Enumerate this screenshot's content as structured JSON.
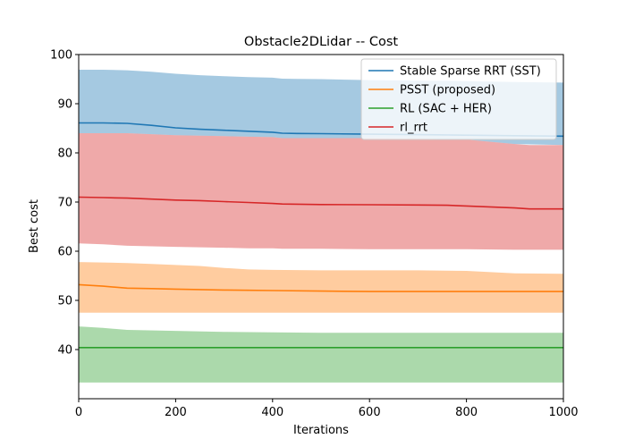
{
  "chart_data": {
    "type": "line",
    "title": "Obstacle2DLidar -- Cost",
    "xlabel": "Iterations",
    "ylabel": "Best cost",
    "xlim": [
      0,
      1000
    ],
    "ylim": [
      30,
      100
    ],
    "xticks": [
      0,
      200,
      400,
      600,
      800,
      1000
    ],
    "yticks": [
      40,
      50,
      60,
      70,
      80,
      90,
      100
    ],
    "grid": false,
    "legend_position": "top-right",
    "series": [
      {
        "name": "Stable Sparse RRT (SST)",
        "color": "#1f77b4",
        "x": [
          0,
          50,
          100,
          150,
          200,
          250,
          300,
          350,
          400,
          420,
          450,
          500,
          600,
          700,
          800,
          900,
          1000
        ],
        "mean": [
          86.1,
          86.1,
          86.0,
          85.6,
          85.1,
          84.8,
          84.6,
          84.4,
          84.2,
          84.0,
          83.95,
          83.9,
          83.8,
          83.7,
          83.6,
          83.5,
          83.4
        ],
        "upper": [
          96.9,
          96.9,
          96.8,
          96.5,
          96.1,
          95.8,
          95.6,
          95.4,
          95.3,
          95.1,
          95.05,
          95.0,
          94.8,
          94.7,
          94.6,
          94.4,
          94.3
        ],
        "lower": [
          84.0,
          84.0,
          84.0,
          83.8,
          83.6,
          83.5,
          83.4,
          83.3,
          83.2,
          83.0,
          83.0,
          83.0,
          83.0,
          82.9,
          82.7,
          81.8,
          81.6
        ]
      },
      {
        "name": "PSST (proposed)",
        "color": "#ff7f0e",
        "x": [
          0,
          50,
          100,
          150,
          200,
          250,
          300,
          350,
          400,
          500,
          600,
          700,
          800,
          900,
          1000
        ],
        "mean": [
          53.2,
          52.9,
          52.5,
          52.4,
          52.3,
          52.2,
          52.1,
          52.05,
          52.0,
          51.9,
          51.8,
          51.8,
          51.8,
          51.8,
          51.8
        ],
        "upper": [
          57.8,
          57.7,
          57.6,
          57.4,
          57.2,
          57.0,
          56.6,
          56.3,
          56.2,
          56.1,
          56.1,
          56.1,
          56.0,
          55.5,
          55.4
        ],
        "lower": [
          47.5,
          47.5,
          47.5,
          47.5,
          47.5,
          47.5,
          47.5,
          47.5,
          47.5,
          47.5,
          47.5,
          47.5,
          47.5,
          47.5,
          47.5
        ]
      },
      {
        "name": "RL (SAC + HER)",
        "color": "#2ca02c",
        "x": [
          0,
          50,
          100,
          200,
          300,
          400,
          500,
          600,
          700,
          800,
          900,
          1000
        ],
        "mean": [
          40.4,
          40.4,
          40.4,
          40.4,
          40.4,
          40.4,
          40.4,
          40.4,
          40.4,
          40.4,
          40.4,
          40.4
        ],
        "upper": [
          44.7,
          44.4,
          44.0,
          43.8,
          43.6,
          43.5,
          43.4,
          43.4,
          43.4,
          43.4,
          43.4,
          43.4
        ],
        "lower": [
          33.3,
          33.3,
          33.3,
          33.3,
          33.3,
          33.3,
          33.3,
          33.3,
          33.3,
          33.3,
          33.3,
          33.3
        ]
      },
      {
        "name": "rl_rrt",
        "color": "#d62728",
        "x": [
          0,
          50,
          100,
          150,
          200,
          250,
          300,
          350,
          400,
          420,
          500,
          600,
          700,
          760,
          800,
          900,
          930,
          1000
        ],
        "mean": [
          71.0,
          70.9,
          70.8,
          70.6,
          70.4,
          70.3,
          70.1,
          69.9,
          69.7,
          69.6,
          69.5,
          69.45,
          69.4,
          69.35,
          69.2,
          68.8,
          68.6,
          68.6
        ],
        "upper": [
          84.0,
          84.0,
          84.0,
          83.8,
          83.6,
          83.5,
          83.4,
          83.3,
          83.2,
          83.0,
          83.0,
          83.0,
          82.9,
          82.8,
          82.7,
          81.8,
          81.6,
          81.6
        ],
        "lower": [
          61.6,
          61.4,
          61.1,
          61.0,
          60.9,
          60.8,
          60.7,
          60.6,
          60.6,
          60.5,
          60.5,
          60.4,
          60.4,
          60.4,
          60.4,
          60.3,
          60.3,
          60.3
        ]
      }
    ]
  }
}
